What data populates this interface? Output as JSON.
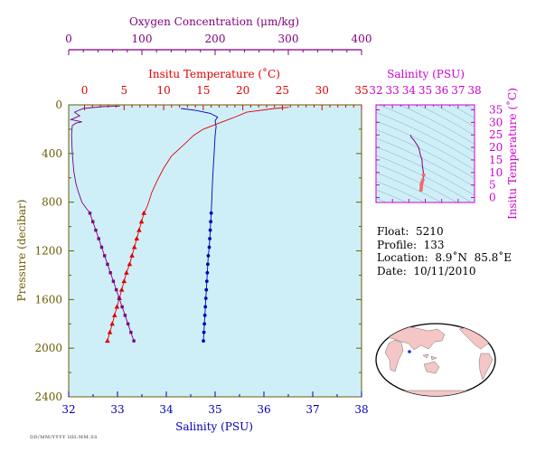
{
  "colors": {
    "plot_bg": "#cfeff8",
    "frame": "#6b5d00",
    "oxygen": "#800080",
    "temperature": "#e00000",
    "salinity": "#0000b4",
    "inset_accent": "#cc00cc",
    "land": "#f5c6c6"
  },
  "chart_data": [
    {
      "type": "line",
      "axes": {
        "y": {
          "label": "Pressure (decibar)",
          "ticks": [
            0,
            400,
            800,
            1200,
            1600,
            2000,
            2400
          ],
          "range": [
            0,
            2400
          ],
          "inverted": true
        },
        "salinity_axis": {
          "label": "Salinity (PSU)",
          "ticks": [
            32,
            33,
            34,
            35,
            36,
            37,
            38
          ],
          "range": [
            32,
            38
          ],
          "position": "bottom"
        },
        "temperature_axis": {
          "label": "Insitu Temperature (˚C)",
          "ticks": [
            0,
            5,
            10,
            15,
            20,
            25,
            30,
            35
          ],
          "range": [
            -2,
            35
          ],
          "position": "top"
        },
        "oxygen_axis": {
          "label": "Oxygen Concentration (μm/kg)",
          "ticks": [
            0,
            100,
            200,
            300,
            400
          ],
          "range": [
            0,
            400
          ],
          "position": "top"
        }
      },
      "grid": false,
      "series": [
        {
          "key": "salinity",
          "axis": "salinity_axis",
          "points": [
            [
              34.3,
              30
            ],
            [
              34.6,
              45
            ],
            [
              34.9,
              70
            ],
            [
              35.05,
              100
            ],
            [
              35.0,
              130
            ],
            [
              35.02,
              180
            ],
            [
              35.0,
              250
            ],
            [
              34.98,
              400
            ],
            [
              34.95,
              600
            ],
            [
              34.93,
              800
            ],
            [
              34.92,
              880
            ]
          ],
          "marked_points": [
            [
              34.92,
              890
            ],
            [
              34.91,
              960
            ],
            [
              34.9,
              1030
            ],
            [
              34.89,
              1100
            ],
            [
              34.88,
              1170
            ],
            [
              34.86,
              1240
            ],
            [
              34.85,
              1310
            ],
            [
              34.84,
              1380
            ],
            [
              34.83,
              1450
            ],
            [
              34.82,
              1520
            ],
            [
              34.81,
              1590
            ],
            [
              34.8,
              1660
            ],
            [
              34.79,
              1730
            ],
            [
              34.78,
              1800
            ],
            [
              34.77,
              1870
            ],
            [
              34.76,
              1940
            ]
          ]
        },
        {
          "key": "temperature",
          "axis": "temperature_axis",
          "points": [
            [
              25.8,
              20
            ],
            [
              24.0,
              30
            ],
            [
              20.5,
              60
            ],
            [
              19.0,
              100
            ],
            [
              17.0,
              150
            ],
            [
              15.0,
              200
            ],
            [
              13.8,
              250
            ],
            [
              12.5,
              330
            ],
            [
              11.0,
              420
            ],
            [
              10.0,
              520
            ],
            [
              9.2,
              620
            ],
            [
              8.5,
              720
            ],
            [
              8.0,
              820
            ],
            [
              7.6,
              880
            ]
          ],
          "marked_points": [
            [
              7.5,
              890
            ],
            [
              7.2,
              960
            ],
            [
              6.9,
              1030
            ],
            [
              6.6,
              1100
            ],
            [
              6.3,
              1170
            ],
            [
              6.0,
              1240
            ],
            [
              5.7,
              1310
            ],
            [
              5.3,
              1380
            ],
            [
              5.0,
              1450
            ],
            [
              4.7,
              1520
            ],
            [
              4.4,
              1590
            ],
            [
              4.1,
              1660
            ],
            [
              3.8,
              1730
            ],
            [
              3.5,
              1800
            ],
            [
              3.2,
              1870
            ],
            [
              2.9,
              1940
            ]
          ]
        },
        {
          "key": "oxygen",
          "axis": "oxygen_axis",
          "points": [
            [
              70,
              10
            ],
            [
              45,
              15
            ],
            [
              20,
              30
            ],
            [
              8,
              60
            ],
            [
              15,
              90
            ],
            [
              3,
              120
            ],
            [
              18,
              140
            ],
            [
              10,
              150
            ],
            [
              5,
              170
            ],
            [
              4,
              250
            ],
            [
              5,
              400
            ],
            [
              7,
              550
            ],
            [
              10,
              650
            ],
            [
              14,
              730
            ],
            [
              18,
              800
            ],
            [
              24,
              850
            ],
            [
              28,
              880
            ]
          ],
          "marked_points": [
            [
              29,
              890
            ],
            [
              33,
              960
            ],
            [
              37,
              1030
            ],
            [
              41,
              1100
            ],
            [
              45,
              1170
            ],
            [
              49,
              1240
            ],
            [
              53,
              1310
            ],
            [
              57,
              1380
            ],
            [
              61,
              1450
            ],
            [
              65,
              1520
            ],
            [
              69,
              1590
            ],
            [
              73,
              1660
            ],
            [
              77,
              1730
            ],
            [
              81,
              1800
            ],
            [
              85,
              1870
            ],
            [
              89,
              1940
            ]
          ]
        }
      ]
    },
    {
      "type": "line",
      "xlabel": "Salinity (PSU)",
      "ylabel": "Insitu Temperature (˚C)",
      "x_ticks": [
        32,
        33,
        34,
        35,
        36,
        37,
        38
      ],
      "y_ticks": [
        0,
        5,
        10,
        15,
        20,
        25,
        30,
        35
      ],
      "xlim": [
        32,
        38
      ],
      "ylim": [
        -2,
        37
      ],
      "density_contours": true,
      "series": [
        {
          "key": "ts",
          "points": [
            [
              34.1,
              25.0
            ],
            [
              34.15,
              24.0
            ],
            [
              34.3,
              23.0
            ],
            [
              34.45,
              21.5
            ],
            [
              34.6,
              20.0
            ],
            [
              34.7,
              17.0
            ],
            [
              34.8,
              15.0
            ],
            [
              34.82,
              13.0
            ],
            [
              34.86,
              11.0
            ],
            [
              34.9,
              9.0
            ],
            [
              34.85,
              7.0
            ],
            [
              34.8,
              6.0
            ],
            [
              34.76,
              5.0
            ],
            [
              34.76,
              4.0
            ],
            [
              34.74,
              3.0
            ]
          ]
        }
      ]
    }
  ],
  "float_info": {
    "float_line": "Float:  5210",
    "profile_line": "Profile:  133",
    "location_line": "Location:  8.9˚N  85.8˚E",
    "date_line": "Date:  10/11/2010"
  },
  "map": {
    "marker_lat": 8.9,
    "marker_lon": 85.8
  },
  "stamp": "DD/MM/YYYY HH:MM:SS"
}
